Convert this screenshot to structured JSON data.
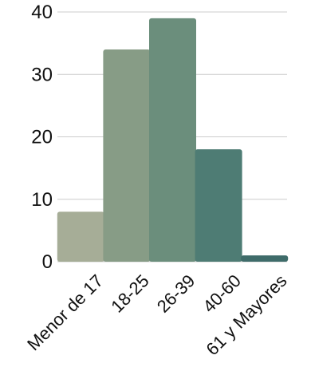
{
  "chart_data": {
    "type": "bar",
    "title": "",
    "xlabel": "",
    "ylabel": "",
    "categories": [
      "Menor de 17",
      "18-25",
      "26-39",
      "40-60",
      "61 y Mayores"
    ],
    "values": [
      8,
      34,
      39,
      18,
      1
    ],
    "colors": [
      "#a6ad97",
      "#879c86",
      "#6b8e7c",
      "#4e7c74",
      "#3f6c6a"
    ],
    "ylim": [
      0,
      40
    ],
    "yticks": [
      0,
      10,
      20,
      30,
      40
    ],
    "grid": true,
    "legend": "none"
  }
}
